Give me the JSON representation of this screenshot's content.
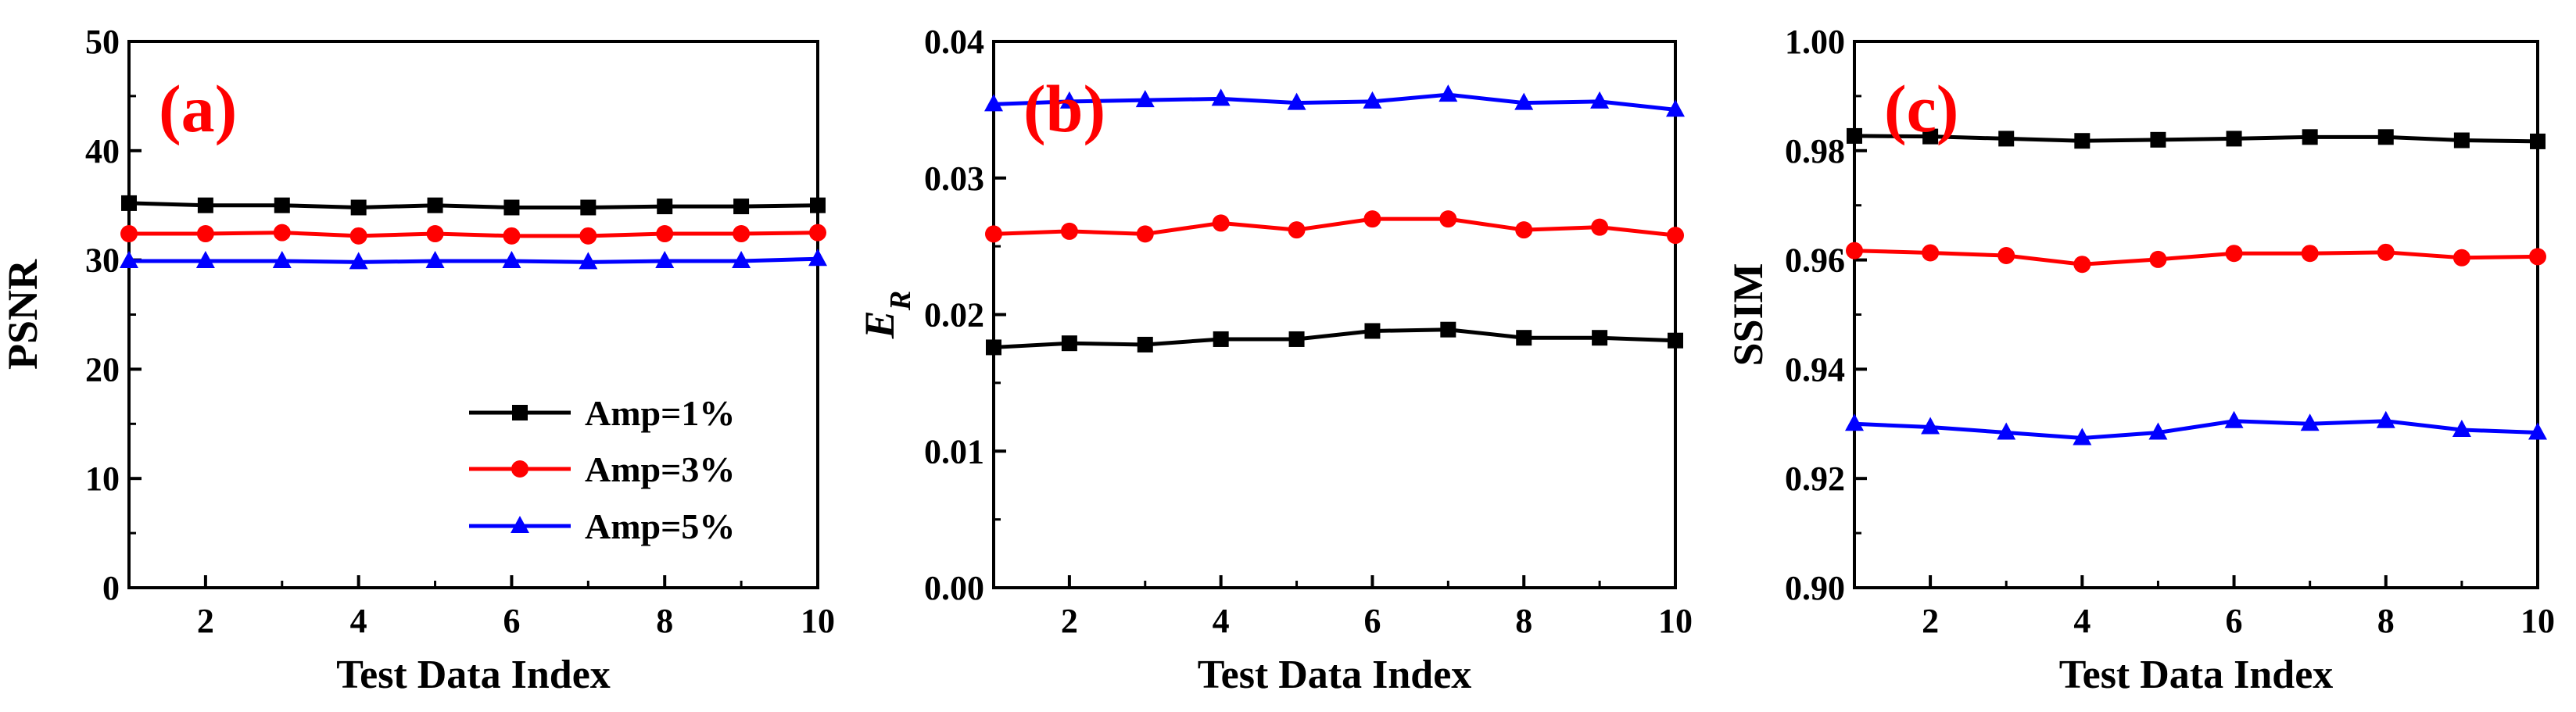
{
  "chart_data": [
    {
      "type": "line",
      "panel_label": "(a)",
      "xlabel": "Test Data Index",
      "ylabel": "PSNR",
      "xlim": [
        1,
        10
      ],
      "ylim": [
        0,
        50
      ],
      "xticks": [
        2,
        4,
        6,
        8,
        10
      ],
      "yticks": [
        0,
        10,
        20,
        30,
        40,
        50
      ],
      "yticklabels": [
        "0",
        "10",
        "20",
        "30",
        "40",
        "50"
      ],
      "legend_position": "lower-right",
      "x": [
        1,
        2,
        3,
        4,
        5,
        6,
        7,
        8,
        9,
        10
      ],
      "series": [
        {
          "name": "Amp=1%",
          "color": "#000000",
          "marker": "square",
          "values": [
            35.2,
            35.0,
            35.0,
            34.8,
            35.0,
            34.8,
            34.8,
            34.9,
            34.9,
            35.0
          ]
        },
        {
          "name": "Amp=3%",
          "color": "#ff0000",
          "marker": "circle",
          "values": [
            32.4,
            32.4,
            32.5,
            32.2,
            32.4,
            32.2,
            32.2,
            32.4,
            32.4,
            32.5
          ]
        },
        {
          "name": "Amp=5%",
          "color": "#0000ff",
          "marker": "triangle",
          "values": [
            29.9,
            29.9,
            29.9,
            29.8,
            29.9,
            29.9,
            29.8,
            29.9,
            29.9,
            30.1
          ]
        }
      ]
    },
    {
      "type": "line",
      "panel_label": "(b)",
      "xlabel": "Test Data Index",
      "ylabel": "E",
      "ylabel_subscript": "R",
      "xlim": [
        1,
        10
      ],
      "ylim": [
        0,
        0.04
      ],
      "xticks": [
        2,
        4,
        6,
        8,
        10
      ],
      "yticks": [
        0,
        0.01,
        0.02,
        0.03,
        0.04
      ],
      "yticklabels": [
        "0.00",
        "0.01",
        "0.02",
        "0.03",
        "0.04"
      ],
      "x": [
        1,
        2,
        3,
        4,
        5,
        6,
        7,
        8,
        9,
        10
      ],
      "series": [
        {
          "name": "Amp=1%",
          "color": "#000000",
          "marker": "square",
          "values": [
            0.0176,
            0.0179,
            0.0178,
            0.0182,
            0.0182,
            0.0188,
            0.0189,
            0.0183,
            0.0183,
            0.0181
          ]
        },
        {
          "name": "Amp=3%",
          "color": "#ff0000",
          "marker": "circle",
          "values": [
            0.0259,
            0.0261,
            0.0259,
            0.0267,
            0.0262,
            0.027,
            0.027,
            0.0262,
            0.0264,
            0.0258
          ]
        },
        {
          "name": "Amp=5%",
          "color": "#0000ff",
          "marker": "triangle",
          "values": [
            0.0354,
            0.0356,
            0.0357,
            0.0358,
            0.0355,
            0.0356,
            0.0361,
            0.0355,
            0.0356,
            0.035
          ]
        }
      ]
    },
    {
      "type": "line",
      "panel_label": "(c)",
      "xlabel": "Test Data Index",
      "ylabel": "SSIM",
      "xlim": [
        1,
        10
      ],
      "ylim": [
        0.9,
        1.0
      ],
      "xticks": [
        2,
        4,
        6,
        8,
        10
      ],
      "yticks": [
        0.9,
        0.92,
        0.94,
        0.96,
        0.98,
        1.0
      ],
      "yticklabels": [
        "0.90",
        "0.92",
        "0.94",
        "0.96",
        "0.98",
        "1.00"
      ],
      "x": [
        1,
        2,
        3,
        4,
        5,
        6,
        7,
        8,
        9,
        10
      ],
      "series": [
        {
          "name": "Amp=1%",
          "color": "#000000",
          "marker": "square",
          "values": [
            0.9827,
            0.9826,
            0.9822,
            0.9818,
            0.982,
            0.9822,
            0.9825,
            0.9825,
            0.9819,
            0.9817
          ]
        },
        {
          "name": "Amp=3%",
          "color": "#ff0000",
          "marker": "circle",
          "values": [
            0.9617,
            0.9613,
            0.9608,
            0.9592,
            0.9601,
            0.9612,
            0.9612,
            0.9614,
            0.9604,
            0.9606
          ]
        },
        {
          "name": "Amp=5%",
          "color": "#0000ff",
          "marker": "triangle",
          "values": [
            0.93,
            0.9294,
            0.9284,
            0.9274,
            0.9284,
            0.9305,
            0.93,
            0.9305,
            0.9289,
            0.9284
          ]
        }
      ]
    }
  ],
  "colors": {
    "axes": "#000000",
    "panel_label": "#ff0000",
    "amp1": "#000000",
    "amp3": "#ff0000",
    "amp5": "#0000ff"
  }
}
